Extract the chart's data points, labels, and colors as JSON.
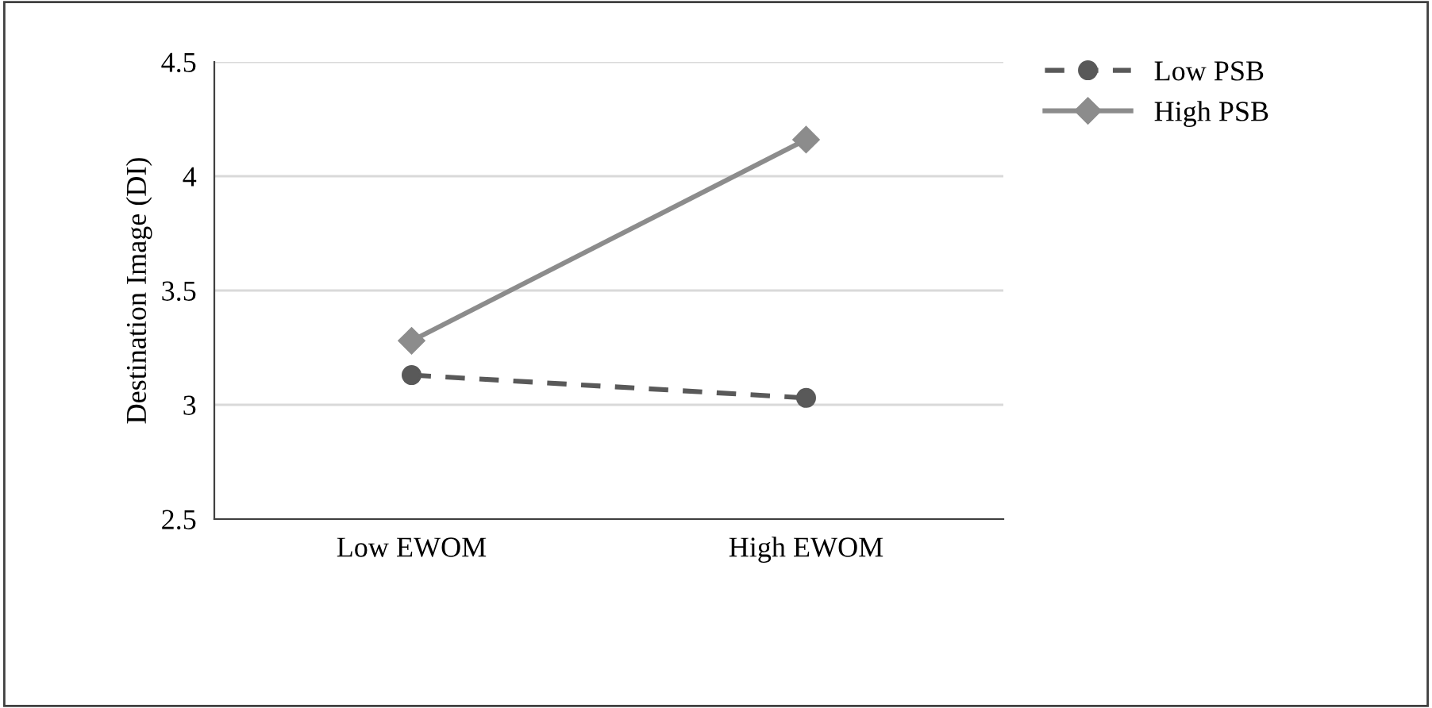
{
  "chart_data": {
    "type": "line",
    "ylabel": "Destination Image (DI)",
    "categories": [
      "Low EWOM",
      "High EWOM"
    ],
    "series": [
      {
        "name": "Low PSB",
        "color": "#595959",
        "values": [
          3.13,
          3.03
        ],
        "marker": "circle",
        "line_style": "dashed"
      },
      {
        "name": "High PSB",
        "color": "#8c8c8c",
        "values": [
          3.28,
          4.16
        ],
        "marker": "diamond",
        "line_style": "solid"
      }
    ],
    "ylim": [
      2.5,
      4.5
    ],
    "yticks": [
      2.5,
      3,
      3.5,
      4,
      4.5
    ],
    "grid": "y",
    "legend": "top right"
  }
}
